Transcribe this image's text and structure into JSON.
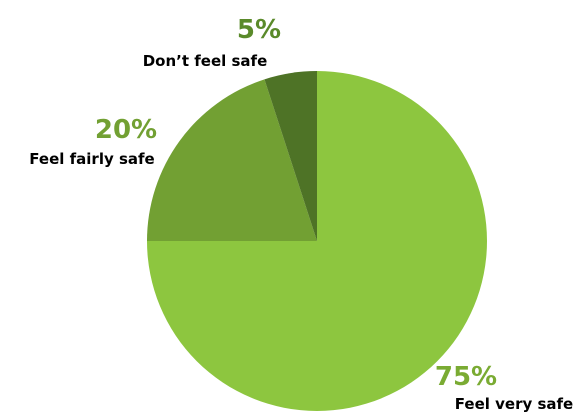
{
  "chart_data": {
    "type": "pie",
    "title": "",
    "slices": [
      {
        "label": "Feel very safe",
        "value": 75,
        "display": "75%",
        "color": "#8dc63f",
        "label_color": "#7aab33"
      },
      {
        "label": "Feel fairly safe",
        "value": 20,
        "display": "20%",
        "color": "#72a033",
        "label_color": "#72a033"
      },
      {
        "label": "Don’t feel safe",
        "value": 5,
        "display": "5%",
        "color": "#4e7326",
        "label_color": "#5a8a2a"
      }
    ],
    "legend": "none",
    "start_angle": "12 o'clock",
    "direction": "clockwise"
  }
}
